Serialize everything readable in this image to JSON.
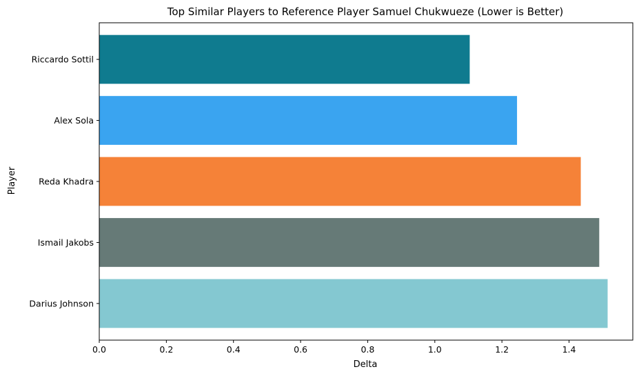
{
  "chart_data": {
    "type": "bar",
    "orientation": "horizontal",
    "title": "Top Similar Players to Reference Player Samuel Chukwueze (Lower is Better)",
    "xlabel": "Delta",
    "ylabel": "Player",
    "categories": [
      "Riccardo Sottil",
      "Alex Sola",
      "Reda Khadra",
      "Ismail Jakobs",
      "Darius Johnson"
    ],
    "values": [
      1.104,
      1.245,
      1.435,
      1.49,
      1.515
    ],
    "colors": [
      "#0f7b8f",
      "#3aa4f0",
      "#f58238",
      "#667a77",
      "#84c8d1"
    ],
    "xlim": [
      0,
      1.59
    ],
    "xticks": [
      0.0,
      0.2,
      0.4,
      0.6,
      0.8,
      1.0,
      1.2,
      1.4
    ],
    "xtick_labels": [
      "0.0",
      "0.2",
      "0.4",
      "0.6",
      "0.8",
      "1.0",
      "1.2",
      "1.4"
    ],
    "grid": false,
    "legend": false
  }
}
